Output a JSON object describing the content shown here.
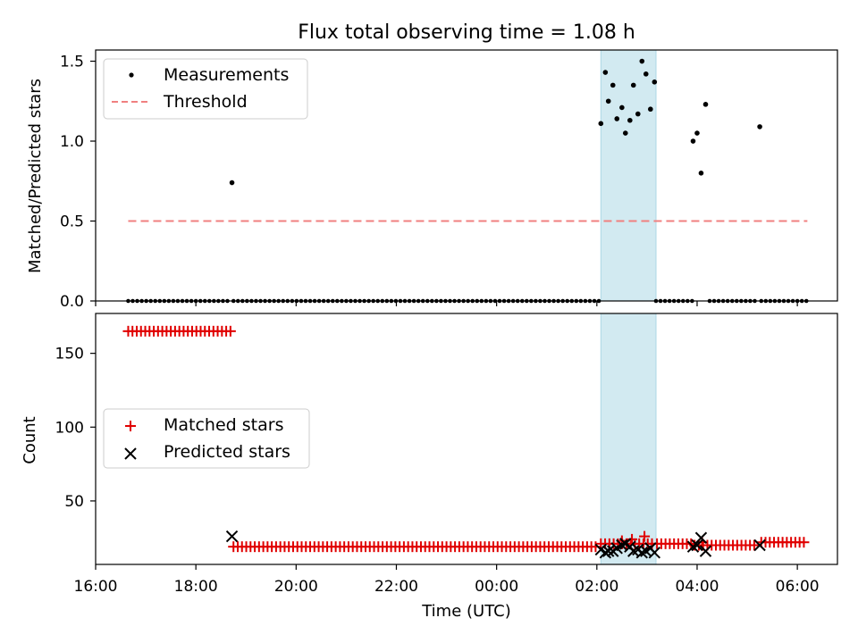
{
  "colors": {
    "measurement": "#000000",
    "threshold": "#f08080",
    "matched": "#e00000",
    "predicted": "#000000",
    "highlight": "#add8e6"
  },
  "chart_data": [
    {
      "type": "scatter",
      "title": "Flux total observing time = 1.08 h",
      "xlabel": "",
      "ylabel": "Matched/Predicted stars",
      "x_unit": "hours since 16:00 UTC",
      "xlim": [
        16.0,
        30.8
      ],
      "ylim": [
        0.0,
        1.57
      ],
      "yticks": [
        "0.0",
        "0.5",
        "1.0",
        "1.5"
      ],
      "grid": false,
      "legend_position": "upper left",
      "highlight_span": [
        26.08,
        27.18
      ],
      "series": [
        {
          "name": "Measurements",
          "kind": "points",
          "points": [
            [
              18.72,
              0.74
            ],
            [
              26.08,
              1.11
            ],
            [
              26.17,
              1.43
            ],
            [
              26.23,
              1.25
            ],
            [
              26.32,
              1.35
            ],
            [
              26.4,
              1.14
            ],
            [
              26.5,
              1.21
            ],
            [
              26.57,
              1.05
            ],
            [
              26.66,
              1.13
            ],
            [
              26.73,
              1.35
            ],
            [
              26.82,
              1.17
            ],
            [
              26.9,
              1.5
            ],
            [
              26.98,
              1.42
            ],
            [
              27.07,
              1.2
            ],
            [
              27.15,
              1.37
            ],
            [
              27.92,
              1.0
            ],
            [
              28.0,
              1.05
            ],
            [
              28.08,
              0.8
            ],
            [
              28.17,
              1.23
            ],
            [
              29.25,
              1.09
            ]
          ],
          "zero_segments": [
            [
              16.65,
              18.7
            ],
            [
              18.75,
              26.05
            ],
            [
              27.18,
              27.9
            ],
            [
              28.25,
              29.2
            ],
            [
              29.28,
              30.2
            ]
          ],
          "zero_step": 0.09
        },
        {
          "name": "Threshold",
          "kind": "dashed-line",
          "x": [
            16.65,
            30.2
          ],
          "y": [
            0.5,
            0.5
          ]
        }
      ]
    },
    {
      "type": "scatter",
      "title": "",
      "xlabel": "Time (UTC)",
      "ylabel": "Count",
      "x_unit": "hours since 16:00 UTC",
      "xlim": [
        16.0,
        30.8
      ],
      "ylim": [
        7,
        177
      ],
      "yticks": [
        "50",
        "100",
        "150"
      ],
      "xticks": [
        "16:00",
        "18:00",
        "20:00",
        "22:00",
        "00:00",
        "02:00",
        "04:00",
        "06:00"
      ],
      "grid": false,
      "legend_position": "center left",
      "highlight_span": [
        26.08,
        27.18
      ],
      "series": [
        {
          "name": "Matched stars",
          "marker": "+",
          "segments": [
            {
              "x_start": 16.65,
              "x_end": 18.7,
              "step": 0.085,
              "y": 165
            },
            {
              "x_start": 18.75,
              "x_end": 26.05,
              "step": 0.085,
              "y": 19
            },
            {
              "x_start": 26.08,
              "x_end": 27.18,
              "step": 0.085,
              "y": 21
            },
            {
              "x_start": 27.2,
              "x_end": 27.9,
              "step": 0.085,
              "y": 21
            },
            {
              "x_start": 27.95,
              "x_end": 29.2,
              "step": 0.085,
              "y": 20
            },
            {
              "x_start": 29.28,
              "x_end": 30.2,
              "step": 0.085,
              "y": 22
            }
          ],
          "points": [
            [
              26.5,
              23
            ],
            [
              26.7,
              24
            ],
            [
              26.95,
              26
            ],
            [
              28.1,
              22
            ]
          ]
        },
        {
          "name": "Predicted stars",
          "marker": "x",
          "points": [
            [
              18.72,
              26
            ],
            [
              26.08,
              17
            ],
            [
              26.17,
              15
            ],
            [
              26.23,
              16
            ],
            [
              26.32,
              16
            ],
            [
              26.4,
              18
            ],
            [
              26.5,
              20
            ],
            [
              26.57,
              21
            ],
            [
              26.66,
              19
            ],
            [
              26.73,
              16
            ],
            [
              26.82,
              17
            ],
            [
              26.9,
              15
            ],
            [
              26.98,
              16
            ],
            [
              27.07,
              18
            ],
            [
              27.15,
              15
            ],
            [
              27.92,
              19
            ],
            [
              28.0,
              20
            ],
            [
              28.08,
              25
            ],
            [
              28.17,
              16
            ],
            [
              29.25,
              20
            ]
          ]
        }
      ]
    }
  ]
}
